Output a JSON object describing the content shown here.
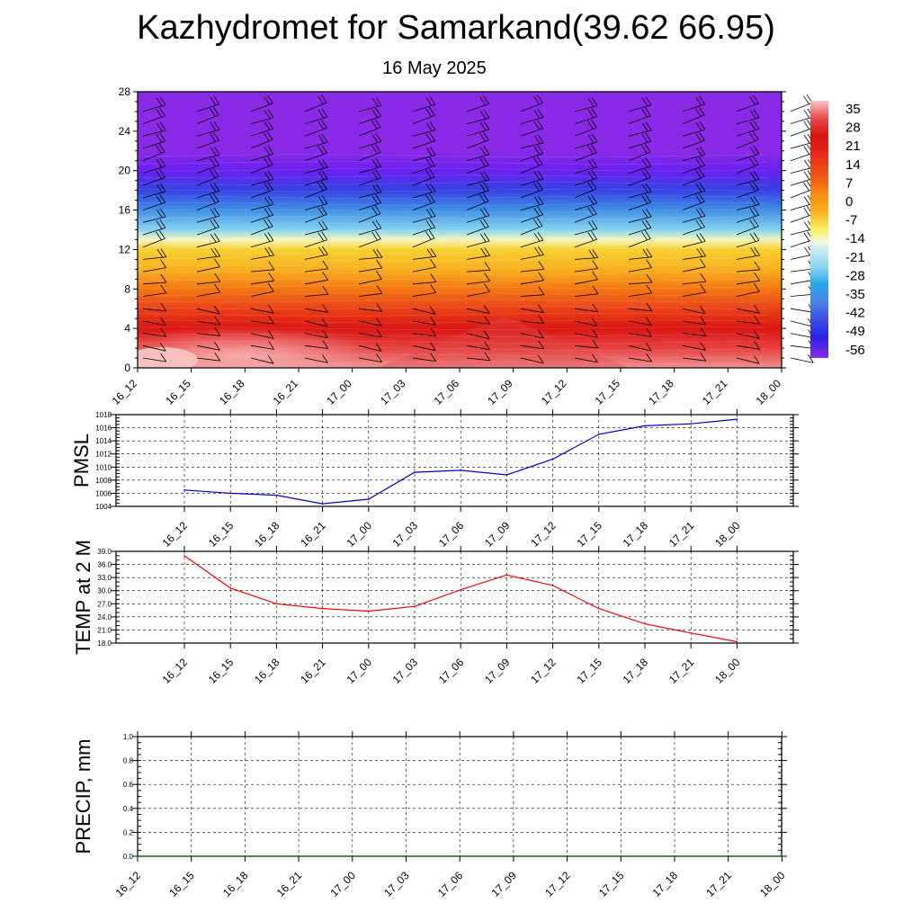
{
  "title": "Kazhydromet for Samarkand(39.62 66.95)",
  "subtitle": "16 May 2025",
  "chart_data": [
    {
      "type": "heatmap",
      "name": "upper-air-temperature-wind-cross-section",
      "x_ticks": [
        "16_12",
        "16_15",
        "16_18",
        "16_21",
        "17_00",
        "17_03",
        "17_06",
        "17_09",
        "17_12",
        "17_15",
        "17_18",
        "17_21",
        "18_00"
      ],
      "y_ticks": [
        0,
        4,
        8,
        12,
        16,
        20,
        24,
        28
      ],
      "ylim": [
        0,
        28
      ],
      "colorbar": {
        "labels": [
          "35",
          "28",
          "21",
          "14",
          "7",
          "0",
          "-7",
          "-14",
          "-21",
          "-28",
          "-35",
          "-42",
          "-49",
          "-56"
        ],
        "colors": [
          "#f6b6b6",
          "#e84848",
          "#d61010",
          "#f03a1c",
          "#f58a10",
          "#f8c020",
          "#f8f060",
          "#e8f4e8",
          "#86d4f0",
          "#2aa8e8",
          "#4a84e8",
          "#3a50e0",
          "#2a24e8",
          "#8a2ae8"
        ]
      },
      "fields": {
        "temperature_by_level": [
          {
            "level": 0,
            "temp": 33
          },
          {
            "level": 2,
            "temp": 28
          },
          {
            "level": 4,
            "temp": 22
          },
          {
            "level": 6,
            "temp": 16
          },
          {
            "level": 8,
            "temp": 10
          },
          {
            "level": 10,
            "temp": 3
          },
          {
            "level": 12,
            "temp": -3
          },
          {
            "level": 13,
            "temp": -12
          },
          {
            "level": 14,
            "temp": -22
          },
          {
            "level": 16,
            "temp": -32
          },
          {
            "level": 18,
            "temp": -42
          },
          {
            "level": 20,
            "temp": -52
          },
          {
            "level": 22,
            "temp": -60
          }
        ]
      }
    },
    {
      "type": "line",
      "name": "pmsl",
      "ylabel": "PMSL",
      "categories": [
        "16_12",
        "16_15",
        "16_18",
        "16_21",
        "17_00",
        "17_03",
        "17_06",
        "17_09",
        "17_12",
        "17_15",
        "17_18",
        "17_21",
        "18_00"
      ],
      "values": [
        1006.5,
        1006.0,
        1005.7,
        1004.4,
        1005.1,
        1009.2,
        1009.5,
        1008.8,
        1011.2,
        1015.0,
        1016.3,
        1016.6,
        1017.3
      ],
      "ylim": [
        1004,
        1018
      ],
      "y_ticks": [
        "1004",
        "1006",
        "1008",
        "1010",
        "1012",
        "1014",
        "1016",
        "1018"
      ],
      "color": "#0000cc"
    },
    {
      "type": "line",
      "name": "temp-2m",
      "ylabel": "TEMP at 2 M",
      "categories": [
        "16_12",
        "16_15",
        "16_18",
        "16_21",
        "17_00",
        "17_03",
        "17_06",
        "17_09",
        "17_12",
        "17_15",
        "17_18",
        "17_21",
        "18_00"
      ],
      "values": [
        38.0,
        30.6,
        27.0,
        25.9,
        25.3,
        26.4,
        30.2,
        33.6,
        31.2,
        25.9,
        22.4,
        20.3,
        18.3
      ],
      "ylim": [
        18,
        39
      ],
      "y_ticks": [
        "18.0",
        "21.0",
        "24.0",
        "27.0",
        "30.0",
        "33.0",
        "36.0",
        "39.0"
      ],
      "color": "#ff0000"
    },
    {
      "type": "line",
      "name": "precip",
      "ylabel": "PRECIP, mm",
      "categories": [
        "16_12",
        "16_15",
        "16_18",
        "16_21",
        "17_00",
        "17_03",
        "17_06",
        "17_09",
        "17_12",
        "17_15",
        "17_18",
        "17_21",
        "18_00"
      ],
      "values": [
        0,
        0,
        0,
        0,
        0,
        0,
        0,
        0,
        0,
        0,
        0,
        0,
        0
      ],
      "ylim": [
        0,
        1
      ],
      "y_ticks": [
        "0.0",
        "0.2",
        "0.4",
        "0.6",
        "0.8",
        "1.0"
      ],
      "color": "#006400"
    }
  ]
}
